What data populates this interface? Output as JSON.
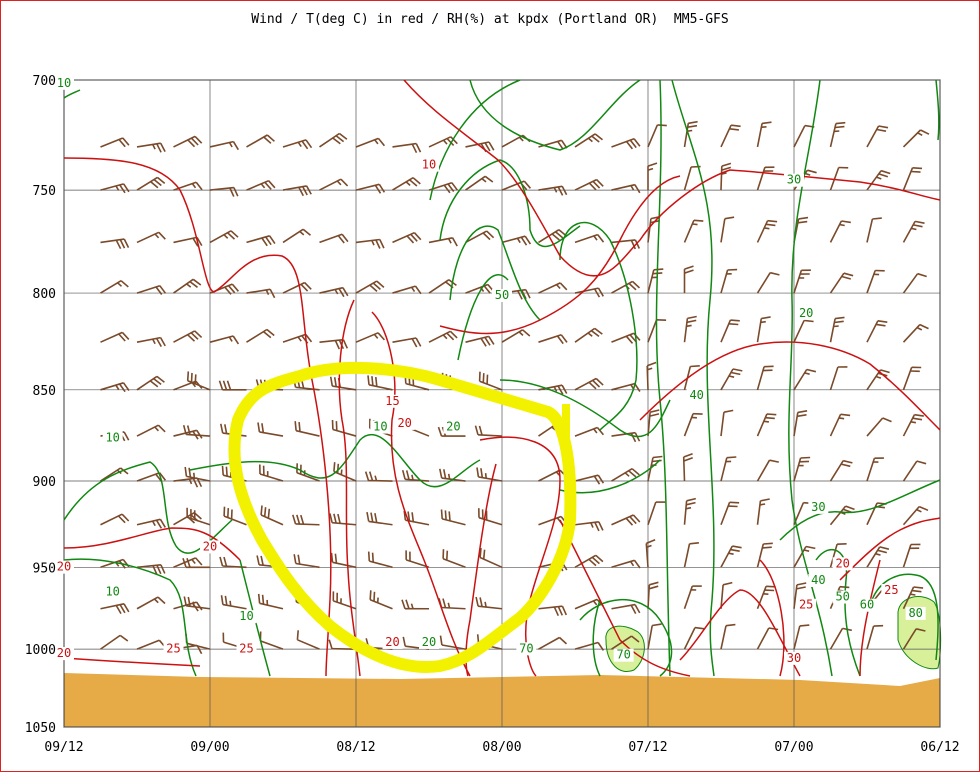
{
  "chart_data": {
    "type": "line",
    "title": "Wind / T(deg C) in red / RH(%) at kpdx (Portland OR)  MM5-GFS",
    "xlabel": "",
    "ylabel": "",
    "x_ticks": [
      "09/12",
      "09/00",
      "08/12",
      "08/00",
      "07/12",
      "07/00",
      "06/12"
    ],
    "y_ticks": [
      700,
      750,
      800,
      850,
      900,
      950,
      1000,
      1050
    ],
    "ylim": [
      700,
      1050
    ],
    "y_scale": "log",
    "x_direction": "time runs right-to-left",
    "grid": true,
    "colors": {
      "temperature": "#cc1111",
      "rh": "#118811",
      "wind": "#7a4a2a",
      "ground": "#e6aa46",
      "highlight": "#f2f200",
      "rh_fill": "#d8f09a"
    },
    "series": [
      {
        "name": "T(deg C)",
        "contour_labels": [
          {
            "value": "10",
            "x": "08/06",
            "p": 740
          },
          {
            "value": "15",
            "x": "08/09",
            "p": 858
          },
          {
            "value": "20",
            "x": "08/08",
            "p": 870
          },
          {
            "value": "20",
            "x": "09/00",
            "p": 940
          },
          {
            "value": "20",
            "x": "09/12",
            "p": 952
          },
          {
            "value": "20",
            "x": "09/12",
            "p": 1005
          },
          {
            "value": "25",
            "x": "09/03",
            "p": 1002
          },
          {
            "value": "25",
            "x": "08/21",
            "p": 1002
          },
          {
            "value": "20",
            "x": "08/09",
            "p": 998
          },
          {
            "value": "30",
            "x": "07/00",
            "p": 1008
          },
          {
            "value": "20",
            "x": "06/20",
            "p": 950
          },
          {
            "value": "25",
            "x": "06/23",
            "p": 975
          },
          {
            "value": "25",
            "x": "06/16",
            "p": 966
          }
        ]
      },
      {
        "name": "RH(%)",
        "contour_labels": [
          {
            "value": "10",
            "x": "09/12",
            "p": 703
          },
          {
            "value": "10",
            "x": "09/08",
            "p": 878
          },
          {
            "value": "10",
            "x": "08/10",
            "p": 872
          },
          {
            "value": "20",
            "x": "08/04",
            "p": 872
          },
          {
            "value": "50",
            "x": "08/00",
            "p": 803
          },
          {
            "value": "30",
            "x": "07/00",
            "p": 747
          },
          {
            "value": "20",
            "x": "06/23",
            "p": 812
          },
          {
            "value": "40",
            "x": "07/08",
            "p": 855
          },
          {
            "value": "30",
            "x": "06/22",
            "p": 917
          },
          {
            "value": "10",
            "x": "09/08",
            "p": 967
          },
          {
            "value": "10",
            "x": "08/21",
            "p": 982
          },
          {
            "value": "20",
            "x": "08/06",
            "p": 998
          },
          {
            "value": "70",
            "x": "07/22",
            "p": 1002
          },
          {
            "value": "70",
            "x": "07/14",
            "p": 1006
          },
          {
            "value": "40",
            "x": "06/22",
            "p": 960
          },
          {
            "value": "50",
            "x": "06/20",
            "p": 970
          },
          {
            "value": "60",
            "x": "06/18",
            "p": 975
          },
          {
            "value": "80",
            "x": "06/14",
            "p": 980
          }
        ]
      },
      {
        "name": "Wind",
        "levels": [
          730,
          750,
          775,
          800,
          825,
          850,
          875,
          900,
          925,
          950,
          975,
          1000
        ],
        "times": [
          "09/12",
          "09/09",
          "09/06",
          "09/03",
          "09/00",
          "08/21",
          "08/18",
          "08/15",
          "08/12",
          "08/09",
          "08/06",
          "08/03",
          "08/00",
          "07/21",
          "07/18",
          "07/15",
          "07/12",
          "07/09",
          "07/06",
          "07/03",
          "07/00",
          "06/21",
          "06/18",
          "06/15",
          "06/12"
        ]
      }
    ]
  }
}
